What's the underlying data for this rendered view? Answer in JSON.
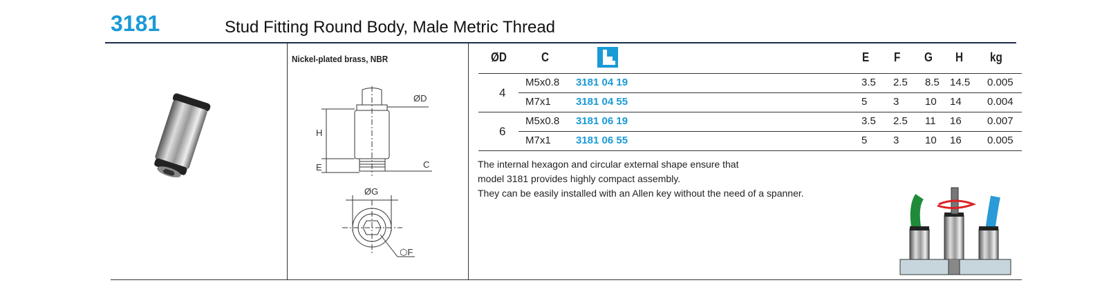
{
  "header": {
    "code": "3181",
    "title": "Stud Fitting Round Body, Male Metric Thread"
  },
  "material": "Nickel-plated brass, NBR",
  "drawing_labels": {
    "d": "ØD",
    "h": "H",
    "e": "E",
    "c": "C",
    "g": "ØG",
    "f": "⬡F"
  },
  "table": {
    "headers": [
      "ØD",
      "C",
      "E",
      "F",
      "G",
      "H",
      "kg"
    ],
    "groups": [
      {
        "d": "4",
        "rows": [
          [
            "M5x0.8",
            "3181 04 19",
            "3.5",
            "2.5",
            "8.5",
            "14.5",
            "0.005"
          ],
          [
            "M7x1",
            "3181 04 55",
            "5",
            "3",
            "10",
            "14",
            "0.004"
          ]
        ]
      },
      {
        "d": "6",
        "rows": [
          [
            "M5x0.8",
            "3181 06 19",
            "3.5",
            "2.5",
            "11",
            "16",
            "0.007"
          ],
          [
            "M7x1",
            "3181 06 55",
            "5",
            "3",
            "10",
            "16",
            "0.005"
          ]
        ]
      }
    ]
  },
  "description": [
    "The internal hexagon and circular external shape ensure that",
    "model 3181 provides highly compact assembly.",
    "They can be easily installed with an Allen key without the need of a spanner."
  ]
}
